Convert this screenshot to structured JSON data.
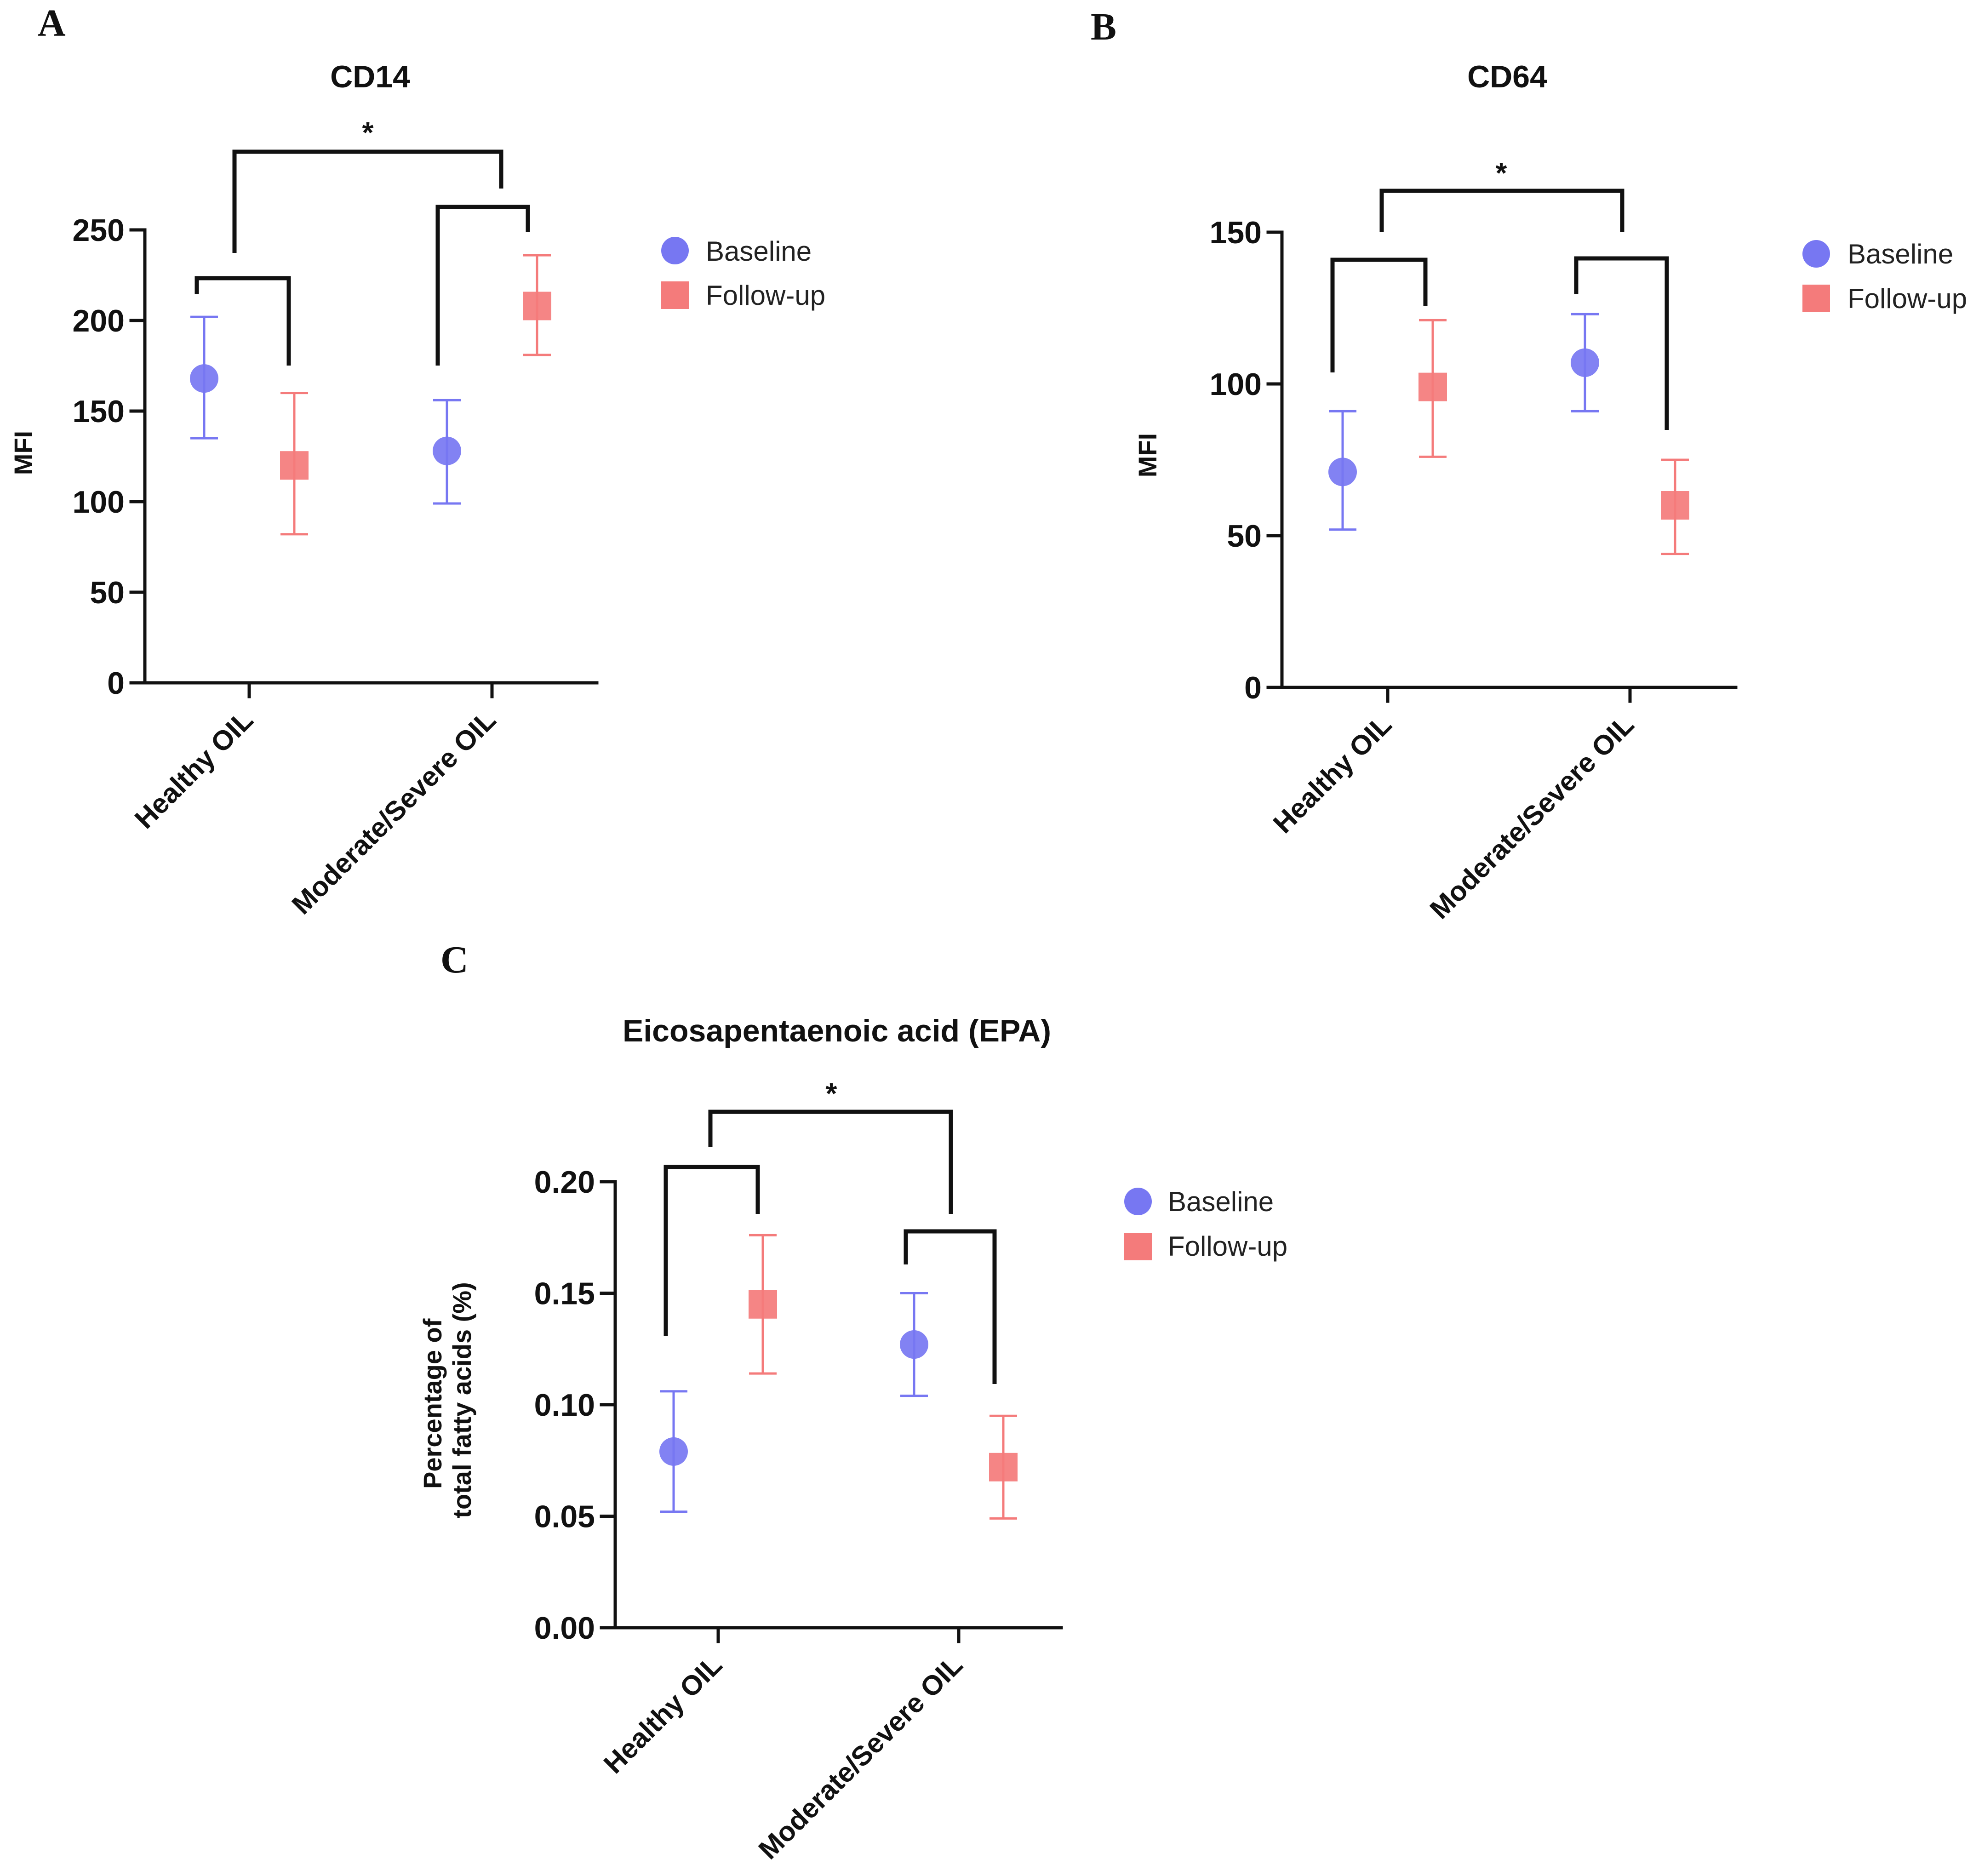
{
  "colors": {
    "baseline": "#7777f2",
    "followup": "#f47b7b",
    "axis": "#111111"
  },
  "chart_data": [
    {
      "panel": "A",
      "type": "scatter",
      "title": "CD14",
      "ylabel": "MFI",
      "xlabel": "",
      "ylim": [
        0,
        250
      ],
      "yticks": [
        0,
        50,
        100,
        150,
        200,
        250
      ],
      "categories": [
        "Healthy OIL",
        "Moderate/Severe OIL"
      ],
      "legend": [
        "Baseline",
        "Follow-up"
      ],
      "series": [
        {
          "name": "Baseline",
          "marker": "circle",
          "values": [
            168,
            128
          ],
          "err_low": [
            135,
            99
          ],
          "err_high": [
            202,
            156
          ]
        },
        {
          "name": "Follow-up",
          "marker": "square",
          "values": [
            120,
            208
          ],
          "err_low": [
            82,
            181
          ],
          "err_high": [
            160,
            236
          ]
        }
      ],
      "significance": [
        {
          "label": "*"
        }
      ]
    },
    {
      "panel": "B",
      "type": "scatter",
      "title": "CD64",
      "ylabel": "MFI",
      "xlabel": "",
      "ylim": [
        0,
        150
      ],
      "yticks": [
        0,
        50,
        100,
        150
      ],
      "categories": [
        "Healthy OIL",
        "Moderate/Severe OIL"
      ],
      "legend": [
        "Baseline",
        "Follow-up"
      ],
      "series": [
        {
          "name": "Baseline",
          "marker": "circle",
          "values": [
            71,
            107
          ],
          "err_low": [
            52,
            91
          ],
          "err_high": [
            91,
            123
          ]
        },
        {
          "name": "Follow-up",
          "marker": "square",
          "values": [
            99,
            60
          ],
          "err_low": [
            76,
            44
          ],
          "err_high": [
            121,
            75
          ]
        }
      ],
      "significance": [
        {
          "label": "*"
        }
      ]
    },
    {
      "panel": "C",
      "type": "scatter",
      "title": "Eicosapentaenoic acid (EPA)",
      "ylabel": "Percentage of total fatty acids (%)",
      "ylabel_lines": [
        "Percentage of",
        "total fatty acids (%)"
      ],
      "xlabel": "",
      "ylim": [
        0,
        0.2
      ],
      "yticks": [
        "0.00",
        "0.05",
        "0.10",
        "0.15",
        "0.20"
      ],
      "categories": [
        "Healthy OIL",
        "Moderate/Severe OIL"
      ],
      "legend": [
        "Baseline",
        "Follow-up"
      ],
      "series": [
        {
          "name": "Baseline",
          "marker": "circle",
          "values": [
            0.079,
            0.127
          ],
          "err_low": [
            0.052,
            0.104
          ],
          "err_high": [
            0.106,
            0.15
          ]
        },
        {
          "name": "Follow-up",
          "marker": "square",
          "values": [
            0.145,
            0.072
          ],
          "err_low": [
            0.114,
            0.049
          ],
          "err_high": [
            0.176,
            0.095
          ]
        }
      ],
      "significance": [
        {
          "label": "*"
        }
      ]
    }
  ]
}
